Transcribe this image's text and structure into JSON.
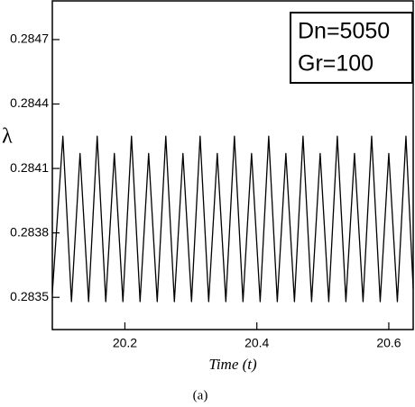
{
  "chart_data": {
    "type": "line",
    "x_label": "Time (t)",
    "y_label": "λ",
    "caption": "(a)",
    "annotations": [
      "Dn=5050",
      "Gr=100"
    ],
    "color": "#000000",
    "x": [
      20.09,
      20.106,
      20.119,
      20.132,
      20.145,
      20.158,
      20.171,
      20.184,
      20.197,
      20.21,
      20.223,
      20.236,
      20.249,
      20.262,
      20.275,
      20.288,
      20.301,
      20.314,
      20.327,
      20.34,
      20.353,
      20.366,
      20.379,
      20.392,
      20.405,
      20.418,
      20.431,
      20.444,
      20.457,
      20.47,
      20.483,
      20.496,
      20.509,
      20.522,
      20.535,
      20.548,
      20.561,
      20.574,
      20.587,
      20.6,
      20.613,
      20.626,
      20.637
    ],
    "values": [
      0.28352,
      0.28425,
      0.28348,
      0.28417,
      0.28348,
      0.28425,
      0.28348,
      0.28417,
      0.28348,
      0.28425,
      0.28348,
      0.28417,
      0.28348,
      0.28425,
      0.28348,
      0.28417,
      0.28348,
      0.28425,
      0.28348,
      0.28417,
      0.28348,
      0.28425,
      0.28348,
      0.28417,
      0.28348,
      0.28425,
      0.28348,
      0.28417,
      0.28348,
      0.28425,
      0.28348,
      0.28417,
      0.28348,
      0.28425,
      0.28348,
      0.28417,
      0.28348,
      0.28425,
      0.28348,
      0.28417,
      0.28348,
      0.28425,
      0.28354
    ],
    "xlim": [
      20.09,
      20.637
    ],
    "ylim": [
      0.28335,
      0.28488
    ],
    "xticks": [
      20.2,
      20.4,
      20.6
    ],
    "yticks": [
      0.2835,
      0.2838,
      0.2841,
      0.2844,
      0.2847
    ]
  }
}
